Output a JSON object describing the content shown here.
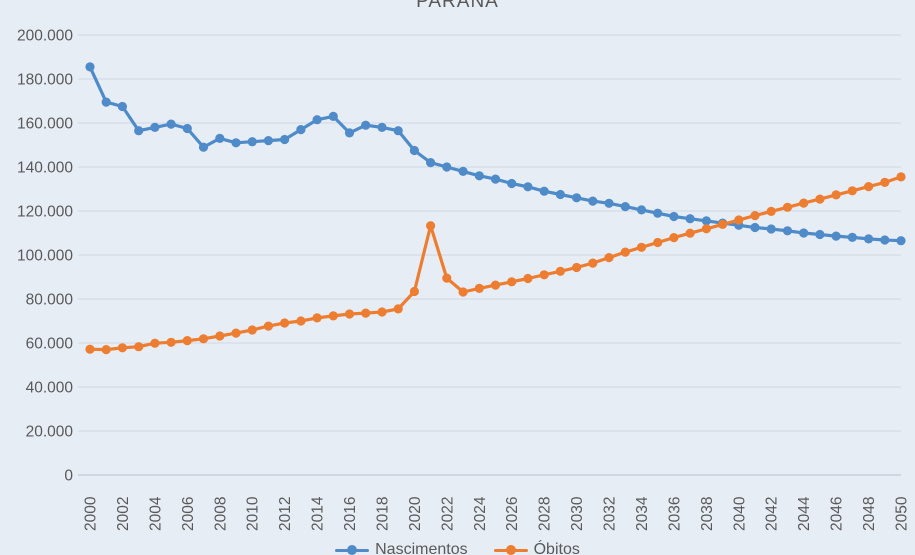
{
  "title": "PARANÁ",
  "colors": {
    "background": "#E7EDF5",
    "gridline": "#D5DCE7",
    "axis_line": "#C7CFDC",
    "text": "#595959",
    "nascimentos": "#4E8BC8",
    "obitos": "#ED7D31"
  },
  "chart_data": {
    "type": "line",
    "title": "PARANÁ",
    "xlabel": "",
    "ylabel": "",
    "ylim": [
      0,
      200000
    ],
    "ytick_interval": 20000,
    "ytick_labels": [
      "0",
      "20.000",
      "40.000",
      "60.000",
      "80.000",
      "100.000",
      "120.000",
      "140.000",
      "160.000",
      "180.000",
      "200.000"
    ],
    "xticks": [
      2000,
      2002,
      2004,
      2006,
      2008,
      2010,
      2012,
      2014,
      2016,
      2018,
      2020,
      2022,
      2024,
      2026,
      2028,
      2030,
      2032,
      2034,
      2036,
      2038,
      2040,
      2042,
      2044,
      2046,
      2048,
      2050
    ],
    "grid": true,
    "legend_position": "bottom",
    "marker": "circle",
    "x": [
      2000,
      2001,
      2002,
      2003,
      2004,
      2005,
      2006,
      2007,
      2008,
      2009,
      2010,
      2011,
      2012,
      2013,
      2014,
      2015,
      2016,
      2017,
      2018,
      2019,
      2020,
      2021,
      2022,
      2023,
      2024,
      2025,
      2026,
      2027,
      2028,
      2029,
      2030,
      2031,
      2032,
      2033,
      2034,
      2035,
      2036,
      2037,
      2038,
      2039,
      2040,
      2041,
      2042,
      2043,
      2044,
      2045,
      2046,
      2047,
      2048,
      2049,
      2050
    ],
    "series": [
      {
        "name": "Nascimentos",
        "color": "#4E8BC8",
        "values": [
          185500,
          169500,
          167500,
          156500,
          158000,
          159500,
          157500,
          149000,
          153000,
          151000,
          151500,
          152000,
          152500,
          157000,
          161500,
          163000,
          155500,
          159000,
          158000,
          156500,
          147500,
          142000,
          140000,
          138000,
          136000,
          134500,
          132500,
          131000,
          129000,
          127500,
          126000,
          124500,
          123500,
          122000,
          120500,
          119000,
          117500,
          116500,
          115500,
          114500,
          113500,
          112500,
          111800,
          111000,
          110000,
          109300,
          108600,
          108000,
          107300,
          106800,
          106500
        ]
      },
      {
        "name": "Óbitos",
        "color": "#ED7D31",
        "values": [
          57200,
          57000,
          57800,
          58300,
          59900,
          60300,
          61100,
          61900,
          63200,
          64500,
          65900,
          67700,
          69100,
          70000,
          71400,
          72300,
          73200,
          73600,
          74100,
          75500,
          83400,
          113300,
          89500,
          83200,
          84800,
          86300,
          87800,
          89300,
          91000,
          92600,
          94300,
          96300,
          98800,
          101300,
          103500,
          105700,
          107900,
          109900,
          111900,
          113900,
          115900,
          117900,
          119800,
          121700,
          123600,
          125400,
          127300,
          129200,
          131100,
          133000,
          135500
        ]
      }
    ]
  },
  "legend": {
    "items": [
      {
        "label": "Nascimentos",
        "color": "#4E8BC8"
      },
      {
        "label": "Óbitos",
        "color": "#ED7D31"
      }
    ]
  }
}
